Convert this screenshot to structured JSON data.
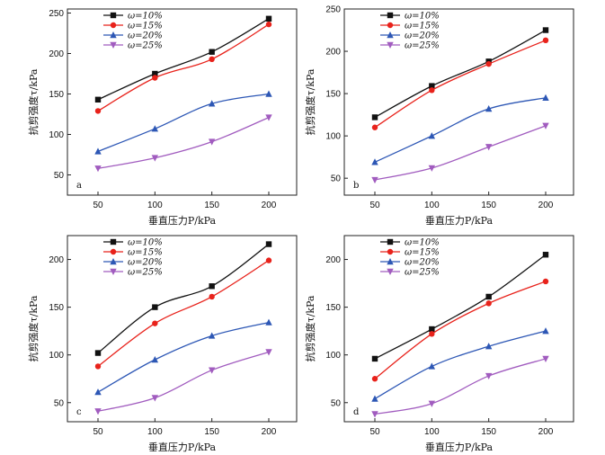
{
  "chart_data": [
    {
      "panel": "a",
      "type": "line",
      "x": [
        50,
        100,
        150,
        200
      ],
      "xlabel": "垂直压力P/kPa",
      "ylabel": "抗剪强度τ/kPa",
      "xticks": [
        50,
        100,
        150,
        200
      ],
      "yticks": [
        50,
        100,
        150,
        200,
        250
      ],
      "ylim": [
        25,
        255
      ],
      "legend": "top-left",
      "series": [
        {
          "name": "ω=10%",
          "values": [
            143,
            175,
            202,
            243
          ]
        },
        {
          "name": "ω=15%",
          "values": [
            129,
            170,
            193,
            236
          ]
        },
        {
          "name": "ω=20%",
          "values": [
            79,
            107,
            138,
            150
          ]
        },
        {
          "name": "ω=25%",
          "values": [
            58,
            71,
            91,
            121
          ]
        }
      ]
    },
    {
      "panel": "b",
      "type": "line",
      "x": [
        50,
        100,
        150,
        200
      ],
      "xlabel": "垂直压力P/kPa",
      "ylabel": "抗剪强度τ/kPa",
      "xticks": [
        50,
        100,
        150,
        200
      ],
      "yticks": [
        50,
        100,
        150,
        200,
        250
      ],
      "ylim": [
        30,
        250
      ],
      "legend": "top-left",
      "series": [
        {
          "name": "ω=10%",
          "values": [
            122,
            159,
            188,
            225
          ]
        },
        {
          "name": "ω=15%",
          "values": [
            110,
            154,
            185,
            213
          ]
        },
        {
          "name": "ω=20%",
          "values": [
            69,
            100,
            132,
            145
          ]
        },
        {
          "name": "ω=25%",
          "values": [
            48,
            62,
            87,
            112
          ]
        }
      ]
    },
    {
      "panel": "c",
      "type": "line",
      "x": [
        50,
        100,
        150,
        200
      ],
      "xlabel": "垂直压力P/kPa",
      "ylabel": "抗剪强度τ/kPa",
      "xticks": [
        50,
        100,
        150,
        200
      ],
      "yticks": [
        50,
        100,
        150,
        200
      ],
      "ylim": [
        30,
        225
      ],
      "legend": "top-left",
      "series": [
        {
          "name": "ω=10%",
          "values": [
            102,
            150,
            172,
            216
          ]
        },
        {
          "name": "ω=15%",
          "values": [
            88,
            133,
            161,
            199
          ]
        },
        {
          "name": "ω=20%",
          "values": [
            61,
            95,
            120,
            134
          ]
        },
        {
          "name": "ω=25%",
          "values": [
            41,
            55,
            84,
            103
          ]
        }
      ]
    },
    {
      "panel": "d",
      "type": "line",
      "x": [
        50,
        100,
        150,
        200
      ],
      "xlabel": "垂直压力P/kPa",
      "ylabel": "抗剪强度τ/kPa",
      "xticks": [
        50,
        100,
        150,
        200
      ],
      "yticks": [
        50,
        100,
        150,
        200
      ],
      "ylim": [
        30,
        225
      ],
      "legend": "top-left",
      "series": [
        {
          "name": "ω=10%",
          "values": [
            96,
            127,
            161,
            205
          ]
        },
        {
          "name": "ω=15%",
          "values": [
            75,
            122,
            154,
            177
          ]
        },
        {
          "name": "ω=20%",
          "values": [
            54,
            88,
            109,
            125
          ]
        },
        {
          "name": "ω=25%",
          "values": [
            38,
            49,
            78,
            96
          ]
        }
      ]
    }
  ],
  "style": {
    "series_colors": [
      "#111111",
      "#e8221b",
      "#2d57b5",
      "#a15cbf"
    ],
    "series_markers": [
      "square",
      "circle",
      "triangle-up",
      "triangle-down"
    ]
  }
}
